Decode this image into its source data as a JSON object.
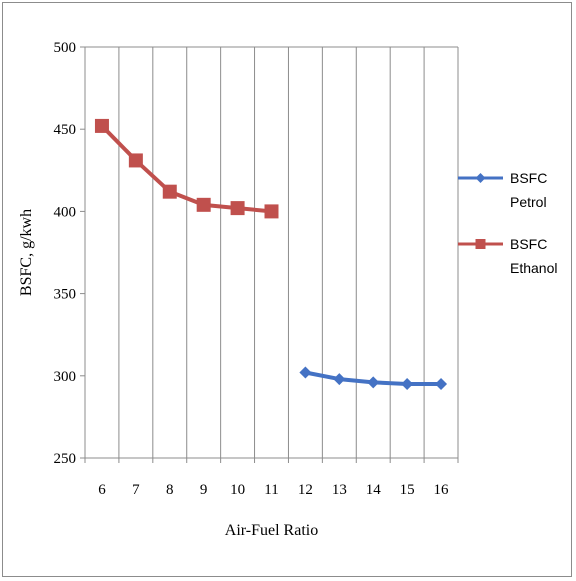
{
  "chart_data": {
    "type": "line",
    "title": "",
    "xlabel": "Air-Fuel Ratio",
    "ylabel": "BSFC, g/kwh",
    "categories": [
      "6",
      "7",
      "8",
      "9",
      "10",
      "11",
      "12",
      "13",
      "14",
      "15",
      "16"
    ],
    "ylim": [
      250,
      500
    ],
    "yticks": [
      250,
      300,
      350,
      400,
      450,
      500
    ],
    "grid": "vertical",
    "legend_position": "right",
    "series": [
      {
        "name": "BSFC Petrol",
        "legend_lines": [
          "BSFC",
          "Petrol"
        ],
        "color": "#4472c4",
        "marker": "diamond",
        "x": [
          12,
          13,
          14,
          15,
          16
        ],
        "values": [
          302,
          298,
          296,
          295,
          295
        ]
      },
      {
        "name": "BSFC Ethanol",
        "legend_lines": [
          "BSFC",
          "Ethanol"
        ],
        "color": "#c0504d",
        "marker": "square",
        "x": [
          6,
          7,
          8,
          9,
          10,
          11
        ],
        "values": [
          452,
          431,
          412,
          404,
          402,
          400
        ]
      }
    ]
  }
}
